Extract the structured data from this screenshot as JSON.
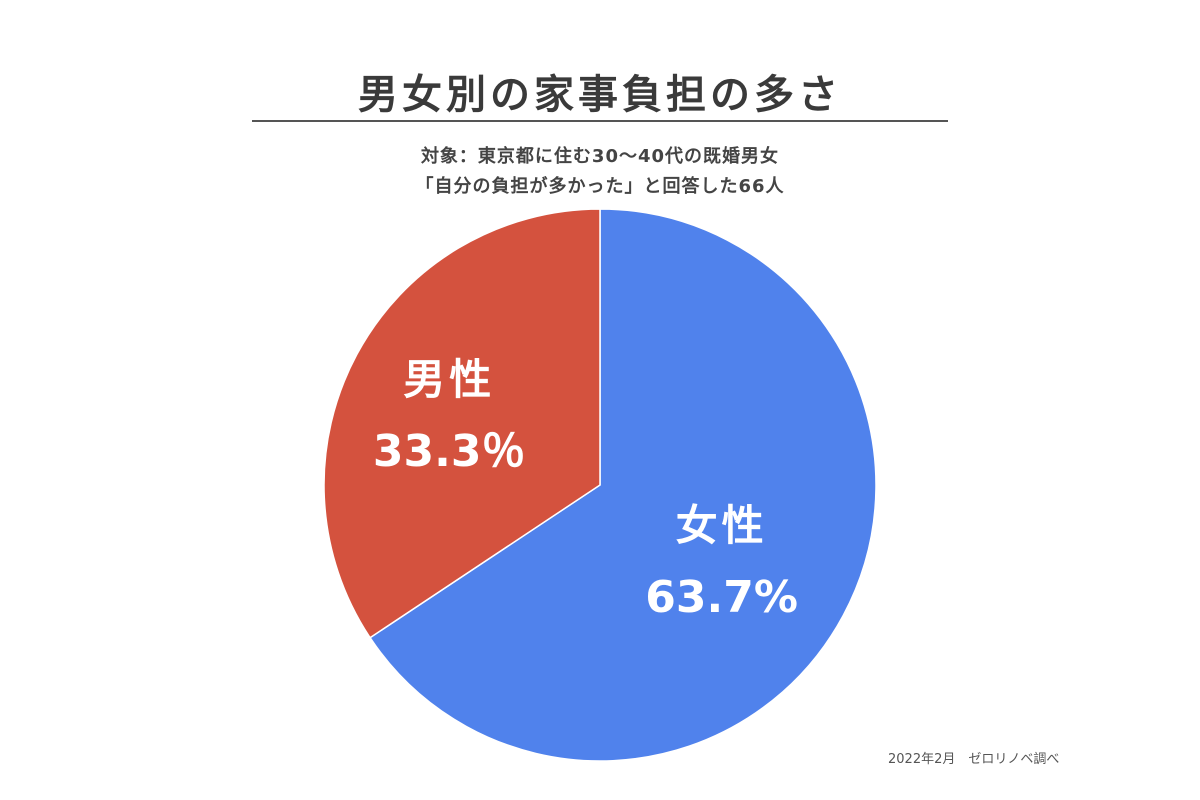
{
  "chart_data": {
    "type": "pie",
    "title": "男女別の家事負担の多さ",
    "subtitle_lines": [
      "対象：東京都に住む30～40代の既婚男女",
      "「自分の負担が多かった」と回答した66人"
    ],
    "slices": [
      {
        "name": "女性",
        "value_label": "63.7%",
        "value": 63.7,
        "color": "#5082ec"
      },
      {
        "name": "男性",
        "value_label": "33.3％",
        "value": 33.3,
        "color": "#d4523e"
      }
    ],
    "start_angle_deg": 0,
    "direction": "clockwise",
    "source": "2022年2月　ゼロリノベ調べ"
  }
}
